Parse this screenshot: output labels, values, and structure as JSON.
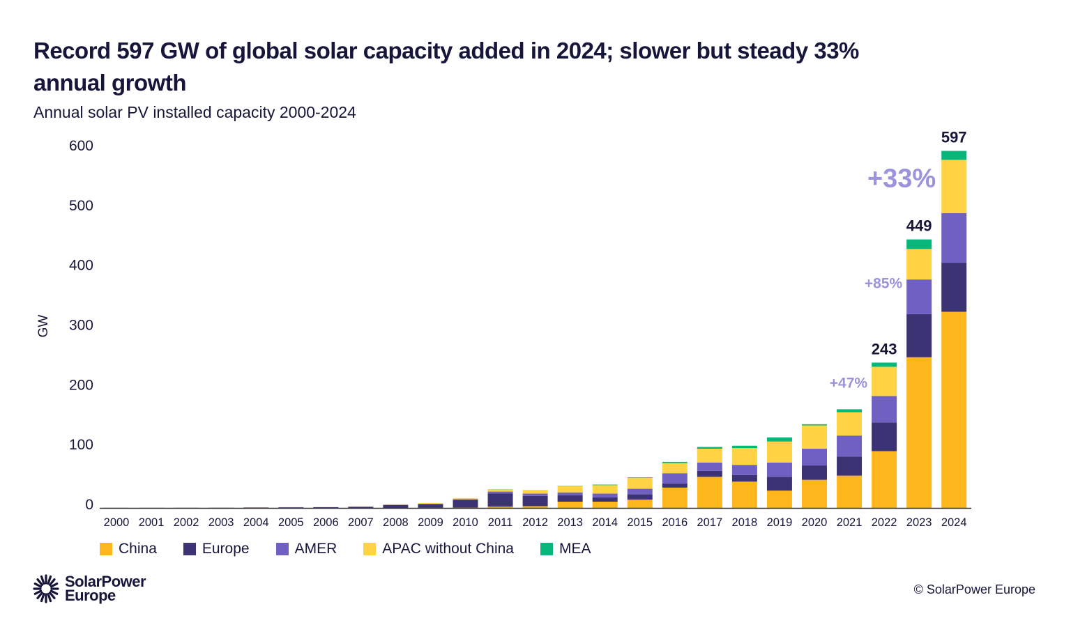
{
  "title": "Record 597 GW of global solar capacity added in 2024; slower but steady 33% annual growth",
  "subtitle": "Annual solar PV installed capacity 2000-2024",
  "footer": {
    "logo_text": "SolarPower Europe",
    "logo_line1": "SolarPower",
    "logo_line2": "Europe",
    "copyright": "© SolarPower Europe"
  },
  "chart_data": {
    "type": "bar",
    "stacked": true,
    "ylabel": "GW",
    "xlabel": "",
    "ylim": [
      0,
      600
    ],
    "yticks": [
      0,
      100,
      200,
      300,
      400,
      500,
      600
    ],
    "grid": false,
    "legend_placement": "bottom-left",
    "categories": [
      "2000",
      "2001",
      "2002",
      "2003",
      "2004",
      "2005",
      "2006",
      "2007",
      "2008",
      "2009",
      "2010",
      "2011",
      "2012",
      "2013",
      "2014",
      "2015",
      "2016",
      "2017",
      "2018",
      "2019",
      "2020",
      "2021",
      "2022",
      "2023",
      "2024"
    ],
    "series": [
      {
        "name": "China",
        "color": "#FDB71D",
        "values": [
          0,
          0,
          0,
          0,
          0,
          0,
          0,
          0,
          0,
          0.2,
          0.5,
          2.3,
          3,
          10.5,
          10.5,
          14,
          34,
          52,
          44,
          29,
          47,
          54,
          95,
          252,
          328
        ]
      },
      {
        "name": "Europe",
        "color": "#3B3374",
        "values": [
          0.1,
          0.1,
          0.2,
          0.3,
          0.7,
          1,
          1.2,
          2,
          5,
          6,
          13,
          22,
          17,
          10.5,
          7,
          9,
          7,
          10,
          11,
          23,
          24,
          32,
          48,
          72,
          82
        ]
      },
      {
        "name": "AMER",
        "color": "#6F60C1",
        "values": [
          0.1,
          0.1,
          0.1,
          0.1,
          0.1,
          0.2,
          0.1,
          0.2,
          0.4,
          0.8,
          1,
          3,
          4,
          5,
          6.5,
          9,
          17,
          14,
          17,
          24,
          28,
          35,
          44,
          58,
          83
        ]
      },
      {
        "name": "APAC without China",
        "color": "#FFD343",
        "values": [
          0.1,
          0.1,
          0.1,
          0.2,
          0.2,
          0.2,
          0.2,
          0.3,
          0.6,
          1,
          2,
          3.5,
          6,
          11,
          14,
          18,
          17,
          23,
          28,
          35,
          39,
          39,
          49,
          51,
          89
        ]
      },
      {
        "name": "MEA",
        "color": "#07B67A",
        "values": [
          0,
          0,
          0,
          0,
          0,
          0,
          0,
          0,
          0,
          0,
          0,
          0.3,
          0,
          0.3,
          1,
          1,
          2,
          3,
          4,
          7,
          2,
          5,
          7,
          16,
          15
        ]
      }
    ],
    "total_labels": [
      {
        "category": "2022",
        "text": "243"
      },
      {
        "category": "2023",
        "text": "449"
      },
      {
        "category": "2024",
        "text": "597"
      }
    ],
    "growth_annotations": [
      {
        "category": "2022",
        "text": "+47%"
      },
      {
        "category": "2023",
        "text": "+85%"
      },
      {
        "category": "2024",
        "text": "+33%"
      }
    ],
    "annotation_color": "#9B93DB"
  }
}
